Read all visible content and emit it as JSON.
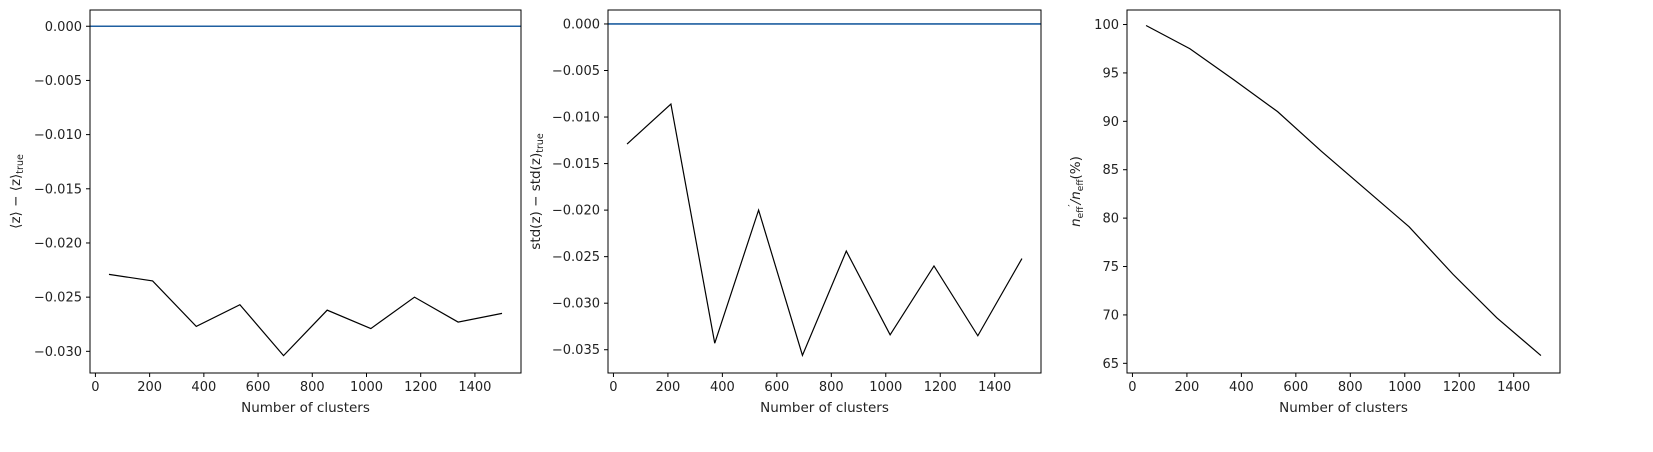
{
  "chart_data": [
    {
      "type": "line",
      "xlabel": "Number of clusters",
      "ylabel": "⟨z⟩ − ⟨z⟩",
      "ylabel_sub": "true",
      "xlim": [
        -20,
        1570
      ],
      "ylim": [
        -0.032,
        0.0015
      ],
      "xticks": [
        0,
        200,
        400,
        600,
        800,
        1000,
        1200,
        1400
      ],
      "xtick_labels": [
        "0",
        "200",
        "400",
        "600",
        "800",
        "1000",
        "1200",
        "1400"
      ],
      "yticks": [
        0.0,
        -0.005,
        -0.01,
        -0.015,
        -0.02,
        -0.025,
        -0.03
      ],
      "ytick_labels": [
        "0.000",
        "−0.005",
        "−0.010",
        "−0.015",
        "−0.020",
        "−0.025",
        "−0.030"
      ],
      "hline": {
        "y": 0.0,
        "color": "#1f5fa0"
      },
      "series": [
        {
          "color": "#000000",
          "x": [
            50,
            211,
            372,
            533,
            694,
            855,
            1016,
            1177,
            1338,
            1500
          ],
          "y": [
            -0.0229,
            -0.0235,
            -0.0277,
            -0.0257,
            -0.0304,
            -0.0262,
            -0.0279,
            -0.025,
            -0.0273,
            -0.0265
          ]
        }
      ]
    },
    {
      "type": "line",
      "xlabel": "Number of clusters",
      "ylabel": "std(z) − std(z)",
      "ylabel_sub": "true",
      "xlim": [
        -20,
        1570
      ],
      "ylim": [
        -0.0375,
        0.0015
      ],
      "xticks": [
        0,
        200,
        400,
        600,
        800,
        1000,
        1200,
        1400
      ],
      "xtick_labels": [
        "0",
        "200",
        "400",
        "600",
        "800",
        "1000",
        "1200",
        "1400"
      ],
      "yticks": [
        0.0,
        -0.005,
        -0.01,
        -0.015,
        -0.02,
        -0.025,
        -0.03,
        -0.035
      ],
      "ytick_labels": [
        "0.000",
        "−0.005",
        "−0.010",
        "−0.015",
        "−0.020",
        "−0.025",
        "−0.030",
        "−0.035"
      ],
      "hline": {
        "y": 0.0,
        "color": "#1f5fa0"
      },
      "series": [
        {
          "color": "#000000",
          "x": [
            50,
            211,
            372,
            533,
            694,
            855,
            1016,
            1177,
            1338,
            1500
          ],
          "y": [
            -0.0129,
            -0.0086,
            -0.0343,
            -0.02,
            -0.0356,
            -0.0244,
            -0.0334,
            -0.026,
            -0.0335,
            -0.0252
          ]
        }
      ]
    },
    {
      "type": "line",
      "xlabel": "Number of clusters",
      "ylabel_parts": [
        "n",
        "eff",
        "′",
        "/n",
        "eff",
        "(%)"
      ],
      "xlim": [
        -20,
        1570
      ],
      "ylim": [
        64,
        101.5
      ],
      "xticks": [
        0,
        200,
        400,
        600,
        800,
        1000,
        1200,
        1400
      ],
      "xtick_labels": [
        "0",
        "200",
        "400",
        "600",
        "800",
        "1000",
        "1200",
        "1400"
      ],
      "yticks": [
        65,
        70,
        75,
        80,
        85,
        90,
        95,
        100
      ],
      "ytick_labels": [
        "65",
        "70",
        "75",
        "80",
        "85",
        "90",
        "95",
        "100"
      ],
      "series": [
        {
          "color": "#000000",
          "x": [
            50,
            211,
            372,
            533,
            694,
            855,
            1016,
            1177,
            1338,
            1500
          ],
          "y": [
            99.9,
            97.5,
            94.3,
            91.0,
            86.9,
            83.0,
            79.1,
            74.2,
            69.7,
            65.8
          ]
        }
      ]
    }
  ]
}
